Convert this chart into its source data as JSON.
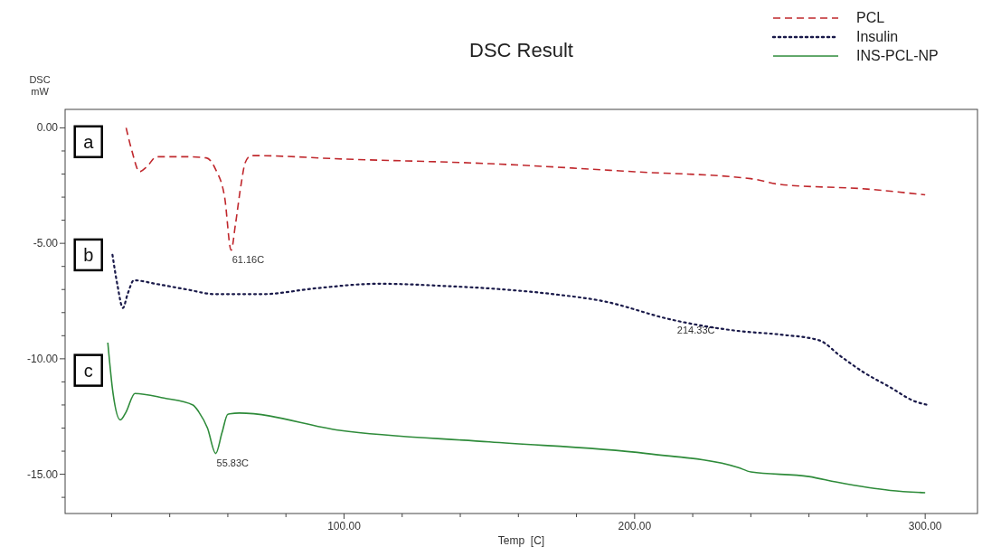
{
  "chart_data": {
    "type": "line",
    "title": "DSC Result",
    "xlabel": "Temp  [C]",
    "ylabel": "DSC mW",
    "xlim": [
      4,
      318
    ],
    "ylim": [
      -16.7,
      0.8
    ],
    "xticks": [
      {
        "value": 20,
        "label": null
      },
      {
        "value": 40,
        "label": null
      },
      {
        "value": 60,
        "label": null
      },
      {
        "value": 80,
        "label": null
      },
      {
        "value": 100,
        "label": "100.00"
      },
      {
        "value": 120,
        "label": null
      },
      {
        "value": 140,
        "label": null
      },
      {
        "value": 160,
        "label": null
      },
      {
        "value": 180,
        "label": null
      },
      {
        "value": 200,
        "label": "200.00"
      },
      {
        "value": 220,
        "label": null
      },
      {
        "value": 240,
        "label": null
      },
      {
        "value": 260,
        "label": null
      },
      {
        "value": 280,
        "label": null
      },
      {
        "value": 300,
        "label": "300.00"
      }
    ],
    "yticks": [
      {
        "value": 0,
        "label": "0.00"
      },
      {
        "value": -1,
        "label": null
      },
      {
        "value": -2,
        "label": null
      },
      {
        "value": -3,
        "label": null
      },
      {
        "value": -4,
        "label": null
      },
      {
        "value": -5,
        "label": "-5.00"
      },
      {
        "value": -6,
        "label": null
      },
      {
        "value": -7,
        "label": null
      },
      {
        "value": -8,
        "label": null
      },
      {
        "value": -9,
        "label": null
      },
      {
        "value": -10,
        "label": "-10.00"
      },
      {
        "value": -11,
        "label": null
      },
      {
        "value": -12,
        "label": null
      },
      {
        "value": -13,
        "label": null
      },
      {
        "value": -14,
        "label": null
      },
      {
        "value": -15,
        "label": "-15.00"
      },
      {
        "value": -16,
        "label": null
      }
    ],
    "grid": false,
    "legend": "top right",
    "marker": "none",
    "series": [
      {
        "name": "PCL",
        "color": "#c0282d",
        "line_style": "dashed",
        "x": [
          25,
          27,
          29.6,
          32,
          35.5,
          45,
          52.6,
          55.8,
          58.9,
          61.16,
          62.6,
          64.5,
          66,
          68,
          100,
          150,
          200,
          240,
          250,
          280,
          300
        ],
        "values": [
          0,
          -1.0,
          -1.9,
          -1.7,
          -1.25,
          -1.25,
          -1.3,
          -1.8,
          -3,
          -5.3,
          -4.2,
          -2.5,
          -1.5,
          -1.2,
          -1.35,
          -1.55,
          -1.9,
          -2.2,
          -2.45,
          -2.65,
          -2.9
        ]
      },
      {
        "name": "Insulin",
        "color": "#1a1a4a",
        "line_style": "dotted",
        "x": [
          20.3,
          22,
          23.9,
          25.5,
          27.7,
          35,
          46,
          55.5,
          72,
          90,
          112,
          135,
          152,
          172,
          189,
          212.5,
          214.33,
          236,
          250,
          263.5,
          271,
          279,
          287.5,
          296.6,
          301
        ],
        "values": [
          -5.5,
          -6.8,
          -7.8,
          -7.2,
          -6.6,
          -6.75,
          -7.0,
          -7.2,
          -7.2,
          -6.95,
          -6.75,
          -6.85,
          -6.97,
          -7.2,
          -7.5,
          -8.3,
          -8.35,
          -8.8,
          -8.95,
          -9.2,
          -9.9,
          -10.6,
          -11.2,
          -11.85,
          -12.0
        ]
      },
      {
        "name": "INS-PCL-NP",
        "color": "#2e8b3a",
        "line_style": "solid",
        "x": [
          18.7,
          20.5,
          23,
          25,
          28,
          38,
          48,
          50,
          53,
          55.83,
          58,
          60,
          64,
          98.5,
          150,
          204,
          235.5,
          240,
          260,
          270,
          288,
          300
        ],
        "values": [
          -9.3,
          -11.5,
          -12.65,
          -12.3,
          -11.5,
          -11.7,
          -12.0,
          -12.3,
          -13.0,
          -14.1,
          -13.2,
          -12.4,
          -12.35,
          -13.1,
          -13.6,
          -14.1,
          -14.7,
          -14.9,
          -15.1,
          -15.35,
          -15.7,
          -15.8
        ]
      }
    ],
    "annotations": [
      {
        "text": "a",
        "x": 12,
        "y": -0.6
      },
      {
        "text": "b",
        "x": 12,
        "y": -5.5
      },
      {
        "text": "c",
        "x": 12,
        "y": -10.5
      },
      {
        "text": "61.16C",
        "x": 61.16,
        "y": -5.3
      },
      {
        "text": "214.33C",
        "x": 214.33,
        "y": -8.35
      },
      {
        "text": "55.83C",
        "x": 55.83,
        "y": -14.1
      }
    ]
  }
}
